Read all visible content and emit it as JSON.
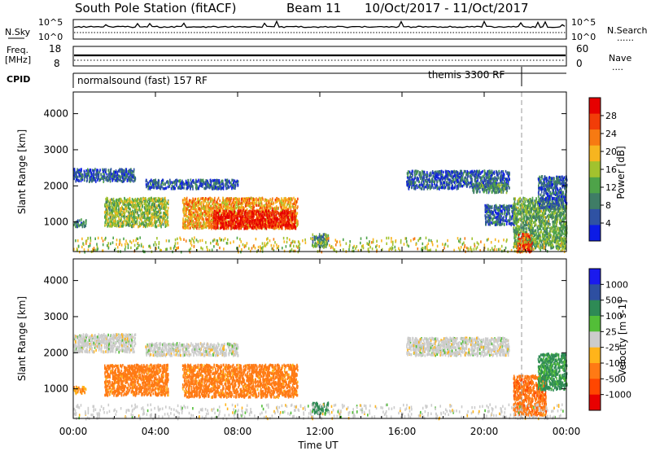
{
  "header": {
    "title": "South Pole Station (fitACF)",
    "beam": "Beam 11",
    "date_range": "10/Oct/2017 - 11/Oct/2017"
  },
  "param_panels": {
    "nsky": {
      "label": "N.Sky",
      "top_tick": "10^5",
      "bottom_tick": "10^0"
    },
    "nsearch": {
      "label": "N.Search",
      "legend_glyph": "......",
      "top_tick": "10^5",
      "bottom_tick": "10^0"
    },
    "freq": {
      "label_line1": "Freq.",
      "label_line2": "[MHz]",
      "top_tick": "18",
      "bottom_tick": "8"
    },
    "nave": {
      "label": "Nave",
      "legend_glyph": "....",
      "top_tick": "60",
      "bottom_tick": "0"
    },
    "cpid": {
      "label": "CPID",
      "mode1": "normalsound (fast) 157 RF",
      "mode2": "themis 3300 RF"
    }
  },
  "colors": {
    "power_scale": [
      "#0c1be6",
      "#2f52a3",
      "#3f7d66",
      "#4ea349",
      "#a2c22e",
      "#f7b51f",
      "#f77a12",
      "#f23d08",
      "#e60000"
    ],
    "velocity_scale": [
      "#e80000",
      "#ff4600",
      "#ff7a14",
      "#ffb41a",
      "#cccccc",
      "#53be38",
      "#2e8a55",
      "#2e4fa1",
      "#1a1aee"
    ],
    "gray": "#9a9a9a"
  },
  "chart_data": [
    {
      "type": "heatmap",
      "title": "Power",
      "colorbar_label": "Power [dB]",
      "colorbar_ticks": [
        "28",
        "24",
        "20",
        "16",
        "12",
        "8",
        "4"
      ],
      "xlabel": "",
      "ylabel": "Slant Range [km]",
      "x_ticks": [
        "00:00",
        "04:00",
        "08:00",
        "12:00",
        "16:00",
        "20:00",
        "00:00"
      ],
      "xlim_hours": [
        0,
        24
      ],
      "y_ticks": [
        1000,
        2000,
        3000,
        4000
      ],
      "ylim_km": [
        180,
        4600
      ],
      "regions": [
        {
          "h_start": 0.0,
          "h_end": 3.0,
          "km_low": 2150,
          "km_high": 2500,
          "level_db": 6
        },
        {
          "h_start": 3.5,
          "h_end": 8.0,
          "km_low": 1950,
          "km_high": 2200,
          "level_db": 6
        },
        {
          "h_start": 0.0,
          "h_end": 0.6,
          "km_low": 900,
          "km_high": 1100,
          "level_db": 8
        },
        {
          "h_start": 1.5,
          "h_end": 4.6,
          "km_low": 900,
          "km_high": 1700,
          "level_db": 14
        },
        {
          "h_start": 5.3,
          "h_end": 10.9,
          "km_low": 850,
          "km_high": 1700,
          "level_db": 20
        },
        {
          "h_start": 6.8,
          "h_end": 10.8,
          "km_low": 850,
          "km_high": 1350,
          "level_db": 28
        },
        {
          "h_start": 11.6,
          "h_end": 12.4,
          "km_low": 350,
          "km_high": 700,
          "level_db": 10
        },
        {
          "h_start": 16.2,
          "h_end": 21.2,
          "km_low": 1950,
          "km_high": 2450,
          "level_db": 6
        },
        {
          "h_start": 19.4,
          "h_end": 21.1,
          "km_low": 1850,
          "km_high": 2100,
          "level_db": 10
        },
        {
          "h_start": 20.0,
          "h_end": 21.5,
          "km_low": 950,
          "km_high": 1500,
          "level_db": 6
        },
        {
          "h_start": 21.4,
          "h_end": 24.0,
          "km_low": 300,
          "km_high": 1700,
          "level_db": 12
        },
        {
          "h_start": 21.6,
          "h_end": 22.3,
          "km_low": 200,
          "km_high": 700,
          "level_db": 26
        },
        {
          "h_start": 22.6,
          "h_end": 24.0,
          "km_low": 1400,
          "km_high": 2300,
          "level_db": 6
        },
        {
          "h_start": 0.0,
          "h_end": 24.0,
          "km_low": 200,
          "km_high": 600,
          "level_db": 16
        }
      ]
    },
    {
      "type": "heatmap",
      "title": "Velocity",
      "colorbar_label": "Velocity [m s-1]",
      "colorbar_ticks": [
        "1000",
        "500",
        "100",
        "25",
        "-25",
        "-100",
        "-500",
        "-1000"
      ],
      "xlabel": "Time UT",
      "ylabel": "Slant Range [km]",
      "x_ticks": [
        "00:00",
        "04:00",
        "08:00",
        "12:00",
        "16:00",
        "20:00",
        "00:00"
      ],
      "xlim_hours": [
        0,
        24
      ],
      "y_ticks": [
        1000,
        2000,
        3000,
        4000
      ],
      "ylim_km": [
        180,
        4600
      ],
      "regions": [
        {
          "h_start": 0.0,
          "h_end": 3.0,
          "km_low": 2050,
          "km_high": 2550,
          "velocity": 0
        },
        {
          "h_start": 3.5,
          "h_end": 8.0,
          "km_low": 1950,
          "km_high": 2300,
          "velocity": 0
        },
        {
          "h_start": 0.0,
          "h_end": 0.6,
          "km_low": 900,
          "km_high": 1100,
          "velocity": -100
        },
        {
          "h_start": 1.5,
          "h_end": 4.6,
          "km_low": 850,
          "km_high": 1700,
          "velocity": -150
        },
        {
          "h_start": 5.3,
          "h_end": 10.9,
          "km_low": 800,
          "km_high": 1700,
          "velocity": -150
        },
        {
          "h_start": 11.6,
          "h_end": 12.4,
          "km_low": 350,
          "km_high": 650,
          "velocity": 150
        },
        {
          "h_start": 16.2,
          "h_end": 21.2,
          "km_low": 1950,
          "km_high": 2450,
          "velocity": 0
        },
        {
          "h_start": 21.4,
          "h_end": 23.0,
          "km_low": 300,
          "km_high": 1400,
          "velocity": -400
        },
        {
          "h_start": 22.6,
          "h_end": 24.0,
          "km_low": 1000,
          "km_high": 2000,
          "velocity": 120
        },
        {
          "h_start": 0.0,
          "h_end": 24.0,
          "km_low": 200,
          "km_high": 600,
          "velocity": 0
        }
      ]
    }
  ]
}
